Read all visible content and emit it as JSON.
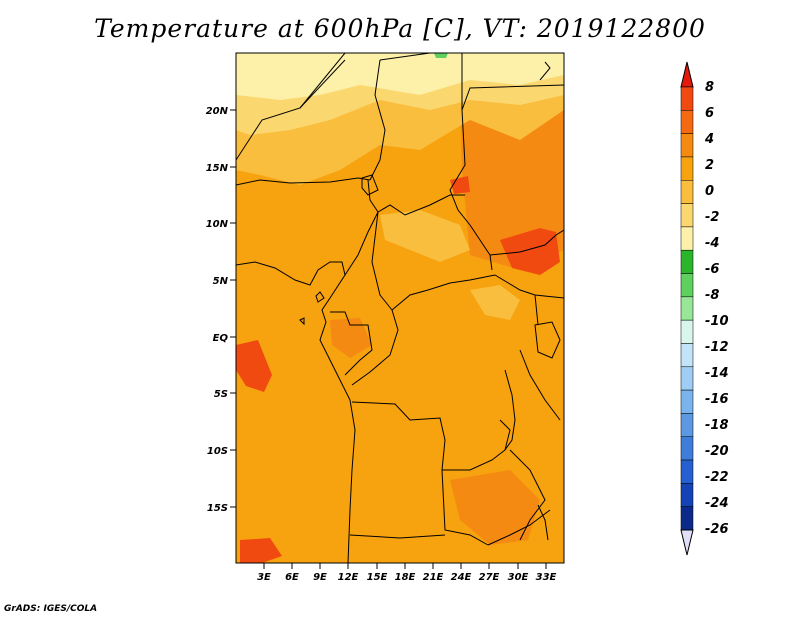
{
  "title": "Temperature at 600hPa [C], VT: 2019122800",
  "credit": "GrADS: IGES/COLA",
  "lat_ticks": [
    "20N",
    "15N",
    "10N",
    "5N",
    "EQ",
    "5S",
    "10S",
    "15S"
  ],
  "lon_ticks": [
    "3E",
    "6E",
    "9E",
    "12E",
    "15E",
    "18E",
    "21E",
    "24E",
    "27E",
    "30E",
    "33E"
  ],
  "colorbar": {
    "labels": [
      "8",
      "6",
      "4",
      "2",
      "0",
      "-2",
      "-4",
      "-6",
      "-8",
      "-10",
      "-12",
      "-14",
      "-16",
      "-18",
      "-20",
      "-22",
      "-24",
      "-26"
    ],
    "colors": [
      "#e31a0c",
      "#f04a10",
      "#f46a10",
      "#f58a12",
      "#f7a20f",
      "#f9be3e",
      "#fbd770",
      "#fdf0a8",
      "#2bb52b",
      "#5fd05f",
      "#98e698",
      "#d8f6ec",
      "#c3e4f8",
      "#9fcdf3",
      "#7ab4ec",
      "#5d99e3",
      "#3f7ddb",
      "#2660d0",
      "#1443b5",
      "#0a2a8a",
      "#e0e0f8"
    ]
  },
  "field_colors": {
    "base": "#f7a20f",
    "warm": "#f58a12",
    "hot": "#f04a10",
    "cool": "#f9be3e",
    "pale": "#fbd770",
    "lightest": "#fdf0a8",
    "green": "#5fd05f"
  }
}
